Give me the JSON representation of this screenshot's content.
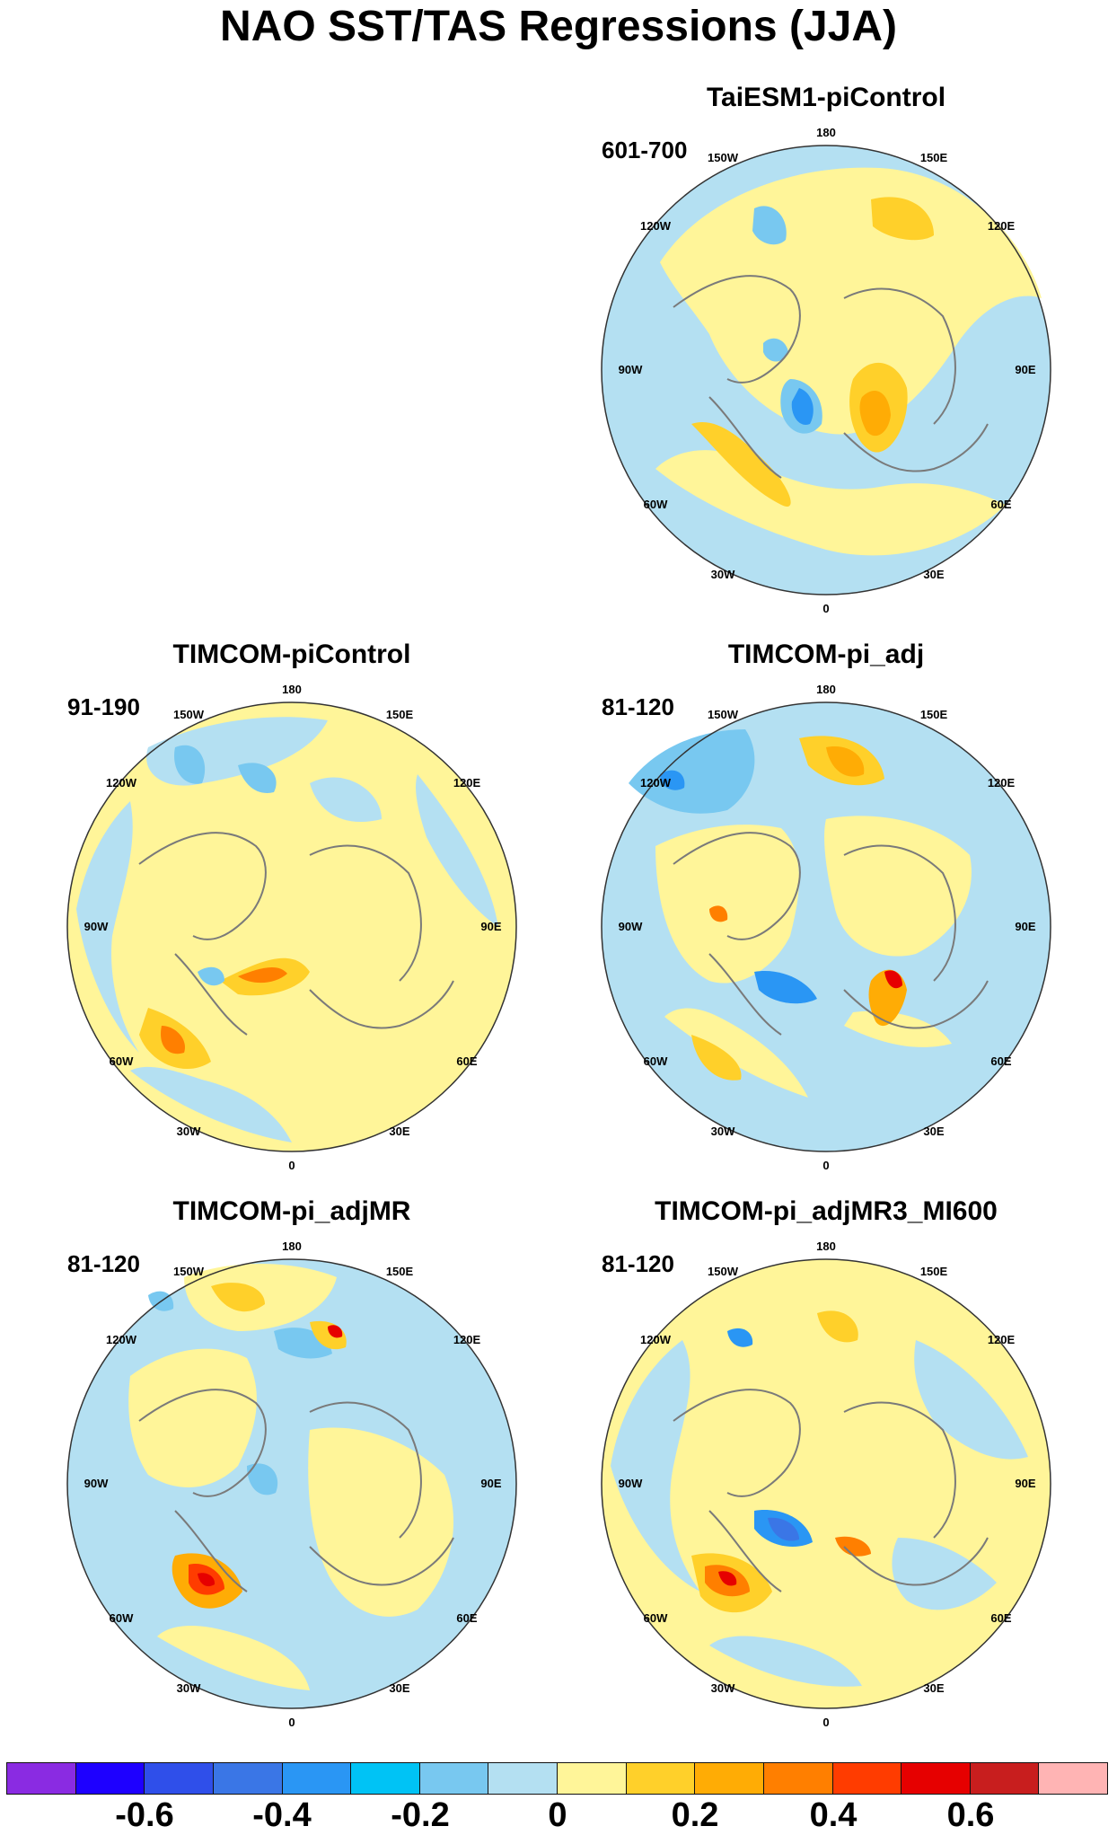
{
  "figure": {
    "title": "NAO SST/TAS Regressions (JJA)"
  },
  "panels": [
    {
      "name": "TaiESM1-piControl",
      "period": "601-700"
    },
    {
      "name": "TIMCOM-piControl",
      "period": "91-190"
    },
    {
      "name": "TIMCOM-pi_adj",
      "period": "81-120"
    },
    {
      "name": "TIMCOM-pi_adjMR",
      "period": "81-120"
    },
    {
      "name": "TIMCOM-pi_adjMR3_MI600",
      "period": "81-120"
    }
  ],
  "map_labels": {
    "lon_180": "180",
    "lon_150w": "150W",
    "lon_150e": "150E",
    "lon_120w": "120W",
    "lon_120e": "120E",
    "lon_90w": "90W",
    "lon_90e": "90E",
    "lon_60w": "60W",
    "lon_60e": "60E",
    "lon_30w": "30W",
    "lon_30e": "30E",
    "lon_0": "0"
  },
  "colorbar": {
    "colors": [
      "#8a2be2",
      "#1e00ff",
      "#2f4fea",
      "#3a76e6",
      "#2a96f4",
      "#00c3f5",
      "#78c8f0",
      "#b4e0f2",
      "#fff599",
      "#ffd02a",
      "#ffac05",
      "#ff7f00",
      "#ff3c00",
      "#e60000",
      "#c81e1e",
      "#ffb4b4"
    ],
    "tick_labels": [
      "-0.6",
      "-0.4",
      "-0.2",
      "0",
      "0.2",
      "0.4",
      "0.6"
    ]
  },
  "color_keys": {
    "ocean_neutral": "#b4e0f2",
    "land_neutral": "#fff599",
    "coast": "#7a7a7a"
  }
}
